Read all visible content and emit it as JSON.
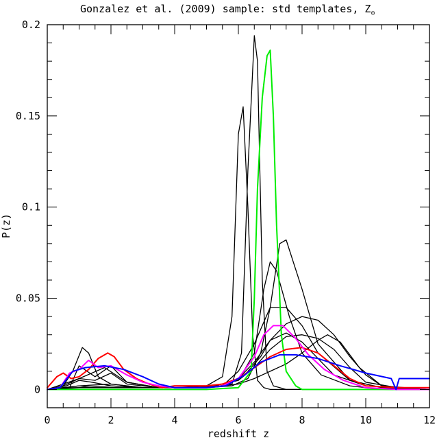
{
  "chart_data": {
    "type": "line",
    "title": "Gonzalez et al. (2009) sample: std templates, Z",
    "title_symbol": "⊙",
    "xlabel": "redshift z",
    "ylabel": "P(z)",
    "xlim": [
      0,
      12
    ],
    "ylim": [
      -0.01,
      0.2
    ],
    "xticks": [
      0,
      2,
      4,
      6,
      8,
      10,
      12
    ],
    "yticks": [
      0,
      0.05,
      0.1,
      0.15,
      0.2
    ],
    "ytick_labels": [
      "0",
      "0.05",
      "0.1",
      "0.15",
      "0.2"
    ],
    "series": [
      {
        "color": "#000000",
        "width": 1.3,
        "x": [
          0,
          0.5,
          1.0,
          1.5,
          2.0,
          3.0,
          4.0,
          5.0,
          5.5,
          5.8,
          6.0,
          6.15,
          6.3,
          6.45,
          6.6,
          6.8,
          7.0,
          7.5,
          8,
          9,
          10,
          12
        ],
        "y": [
          0,
          0.001,
          0.002,
          0.001,
          0.001,
          0.001,
          0.001,
          0.002,
          0.007,
          0.04,
          0.14,
          0.155,
          0.1,
          0.03,
          0.005,
          0.001,
          0,
          0,
          0,
          0,
          0,
          0
        ]
      },
      {
        "color": "#000000",
        "width": 1.3,
        "x": [
          0,
          0.5,
          1.0,
          2.0,
          3.0,
          4.0,
          5.0,
          5.8,
          6.1,
          6.3,
          6.5,
          6.6,
          6.75,
          6.9,
          7.1,
          7.5,
          8,
          9,
          10,
          12
        ],
        "y": [
          0,
          0.001,
          0.001,
          0.001,
          0.001,
          0.001,
          0.001,
          0.003,
          0.02,
          0.12,
          0.194,
          0.18,
          0.06,
          0.01,
          0.002,
          0,
          0,
          0,
          0,
          0
        ],
        "width2": 0
      },
      {
        "color": "#000000",
        "width": 1.3,
        "x": [
          0,
          0.5,
          0.8,
          1.1,
          1.3,
          1.6,
          2,
          3,
          4,
          5,
          5.8,
          6.3,
          6.7,
          7.0,
          7.3,
          7.5,
          8,
          8.5,
          9.5,
          10.5,
          12
        ],
        "y": [
          0,
          0.002,
          0.01,
          0.023,
          0.02,
          0.007,
          0.003,
          0.001,
          0.001,
          0.001,
          0.002,
          0.006,
          0.02,
          0.045,
          0.08,
          0.082,
          0.055,
          0.025,
          0.005,
          0.001,
          0
        ]
      },
      {
        "color": "#000000",
        "width": 1.3,
        "x": [
          0,
          0.6,
          1.0,
          1.4,
          2,
          3,
          4,
          5,
          6,
          6.5,
          6.8,
          7.0,
          7.2,
          7.6,
          8.0,
          8.6,
          9.5,
          10.5,
          12
        ],
        "y": [
          0,
          0.002,
          0.005,
          0.004,
          0.002,
          0.001,
          0.001,
          0.001,
          0.005,
          0.02,
          0.055,
          0.07,
          0.065,
          0.04,
          0.02,
          0.008,
          0.002,
          0,
          0
        ]
      },
      {
        "color": "#000000",
        "width": 1.3,
        "x": [
          0,
          0.5,
          1,
          1.8,
          2.5,
          3.5,
          4.5,
          5.5,
          6,
          6.5,
          7,
          7.5,
          8,
          8.5,
          9,
          9.5,
          10,
          10.5,
          12
        ],
        "y": [
          0,
          0.003,
          0.006,
          0.012,
          0.004,
          0.001,
          0.001,
          0.002,
          0.006,
          0.015,
          0.027,
          0.036,
          0.04,
          0.038,
          0.03,
          0.018,
          0.008,
          0.002,
          0
        ]
      },
      {
        "color": "#000000",
        "width": 1.3,
        "x": [
          0,
          0.5,
          1,
          1.5,
          2,
          2.5,
          3.5,
          4.5,
          5.5,
          6,
          6.5,
          7,
          7.5,
          8,
          8.5,
          9.5,
          10.5,
          12
        ],
        "y": [
          0,
          0.002,
          0.006,
          0.005,
          0.009,
          0.003,
          0.001,
          0.001,
          0.002,
          0.01,
          0.025,
          0.045,
          0.045,
          0.035,
          0.02,
          0.005,
          0.001,
          0
        ]
      },
      {
        "color": "#000000",
        "width": 1.3,
        "x": [
          0,
          1,
          2,
          3,
          4,
          5,
          6,
          6.5,
          7,
          7.5,
          8,
          8.5,
          8.8,
          9.2,
          9.8,
          10.5,
          11,
          12
        ],
        "y": [
          0,
          0.002,
          0.003,
          0.001,
          0.001,
          0.001,
          0.003,
          0.006,
          0.01,
          0.014,
          0.02,
          0.027,
          0.03,
          0.026,
          0.012,
          0.002,
          0.001,
          0
        ]
      },
      {
        "color": "#000000",
        "width": 1.3,
        "x": [
          0,
          1,
          2,
          3,
          4,
          5,
          6,
          6.5,
          7,
          7.5,
          8,
          8.5,
          9,
          9.5,
          10,
          11,
          12
        ],
        "y": [
          0,
          0.001,
          0.002,
          0.001,
          0.001,
          0.001,
          0.005,
          0.012,
          0.022,
          0.029,
          0.03,
          0.028,
          0.022,
          0.012,
          0.004,
          0.001,
          0
        ]
      },
      {
        "color": "#000000",
        "width": 1.3,
        "x": [
          0,
          0.7,
          1.0,
          1.5,
          2.0,
          2.5,
          3.5,
          4.5,
          5.5,
          6.2,
          6.7,
          7,
          7.5,
          8,
          8.5,
          9,
          10,
          11,
          12
        ],
        "y": [
          0,
          0.001,
          0.013,
          0.007,
          0.013,
          0.004,
          0.001,
          0.001,
          0.002,
          0.008,
          0.018,
          0.027,
          0.031,
          0.026,
          0.017,
          0.008,
          0.002,
          0.001,
          0
        ]
      },
      {
        "color": "#00ee00",
        "width": 2,
        "x": [
          0,
          1,
          2,
          3,
          4,
          5,
          6,
          6.4,
          6.5,
          6.6,
          6.75,
          6.9,
          7.0,
          7.1,
          7.2,
          7.35,
          7.5,
          7.8,
          8,
          10,
          12
        ],
        "y": [
          0,
          0,
          0,
          0,
          0,
          0,
          0.001,
          0.01,
          0.05,
          0.11,
          0.16,
          0.183,
          0.186,
          0.15,
          0.09,
          0.03,
          0.01,
          0.002,
          0,
          0,
          0
        ]
      },
      {
        "color": "#ff0000",
        "width": 2,
        "x": [
          0,
          0.3,
          0.5,
          0.75,
          1.0,
          1.3,
          1.6,
          1.9,
          2.1,
          2.4,
          2.8,
          3.2,
          3.6,
          4,
          4.5,
          5,
          5.5,
          6,
          6.5,
          7,
          7.5,
          8,
          8.5,
          9,
          9.5,
          10,
          11,
          12
        ],
        "y": [
          0.001,
          0.007,
          0.009,
          0.006,
          0.007,
          0.011,
          0.017,
          0.02,
          0.018,
          0.011,
          0.006,
          0.003,
          0.001,
          0.002,
          0.002,
          0.002,
          0.003,
          0.006,
          0.012,
          0.018,
          0.022,
          0.023,
          0.02,
          0.013,
          0.006,
          0.002,
          0.001,
          0.001
        ]
      },
      {
        "color": "#ff00ff",
        "width": 2,
        "x": [
          0,
          0.4,
          0.7,
          1.0,
          1.3,
          1.6,
          2.0,
          2.5,
          3.0,
          3.5,
          4,
          5,
          5.5,
          6,
          6.5,
          6.8,
          7.1,
          7.4,
          7.8,
          8.2,
          8.7,
          9.3,
          10,
          11,
          12
        ],
        "y": [
          0,
          0.001,
          0.009,
          0.011,
          0.016,
          0.012,
          0.013,
          0.008,
          0.004,
          0.002,
          0.001,
          0.001,
          0.002,
          0.006,
          0.018,
          0.03,
          0.035,
          0.035,
          0.028,
          0.019,
          0.011,
          0.005,
          0.001,
          0,
          0
        ]
      },
      {
        "color": "#0000ff",
        "width": 2,
        "x": [
          0,
          0.4,
          0.8,
          1.2,
          1.8,
          2.4,
          3.0,
          3.5,
          4,
          5,
          5.6,
          6.2,
          6.7,
          7.3,
          7.8,
          8.5,
          9.2,
          10,
          10.8,
          10.95,
          11.05,
          11.2,
          12
        ],
        "y": [
          0,
          0.001,
          0.01,
          0.012,
          0.013,
          0.011,
          0.007,
          0.003,
          0.001,
          0.001,
          0.002,
          0.008,
          0.015,
          0.019,
          0.019,
          0.017,
          0.013,
          0.009,
          0.006,
          0,
          0.006,
          0.006,
          0.006
        ]
      }
    ]
  }
}
